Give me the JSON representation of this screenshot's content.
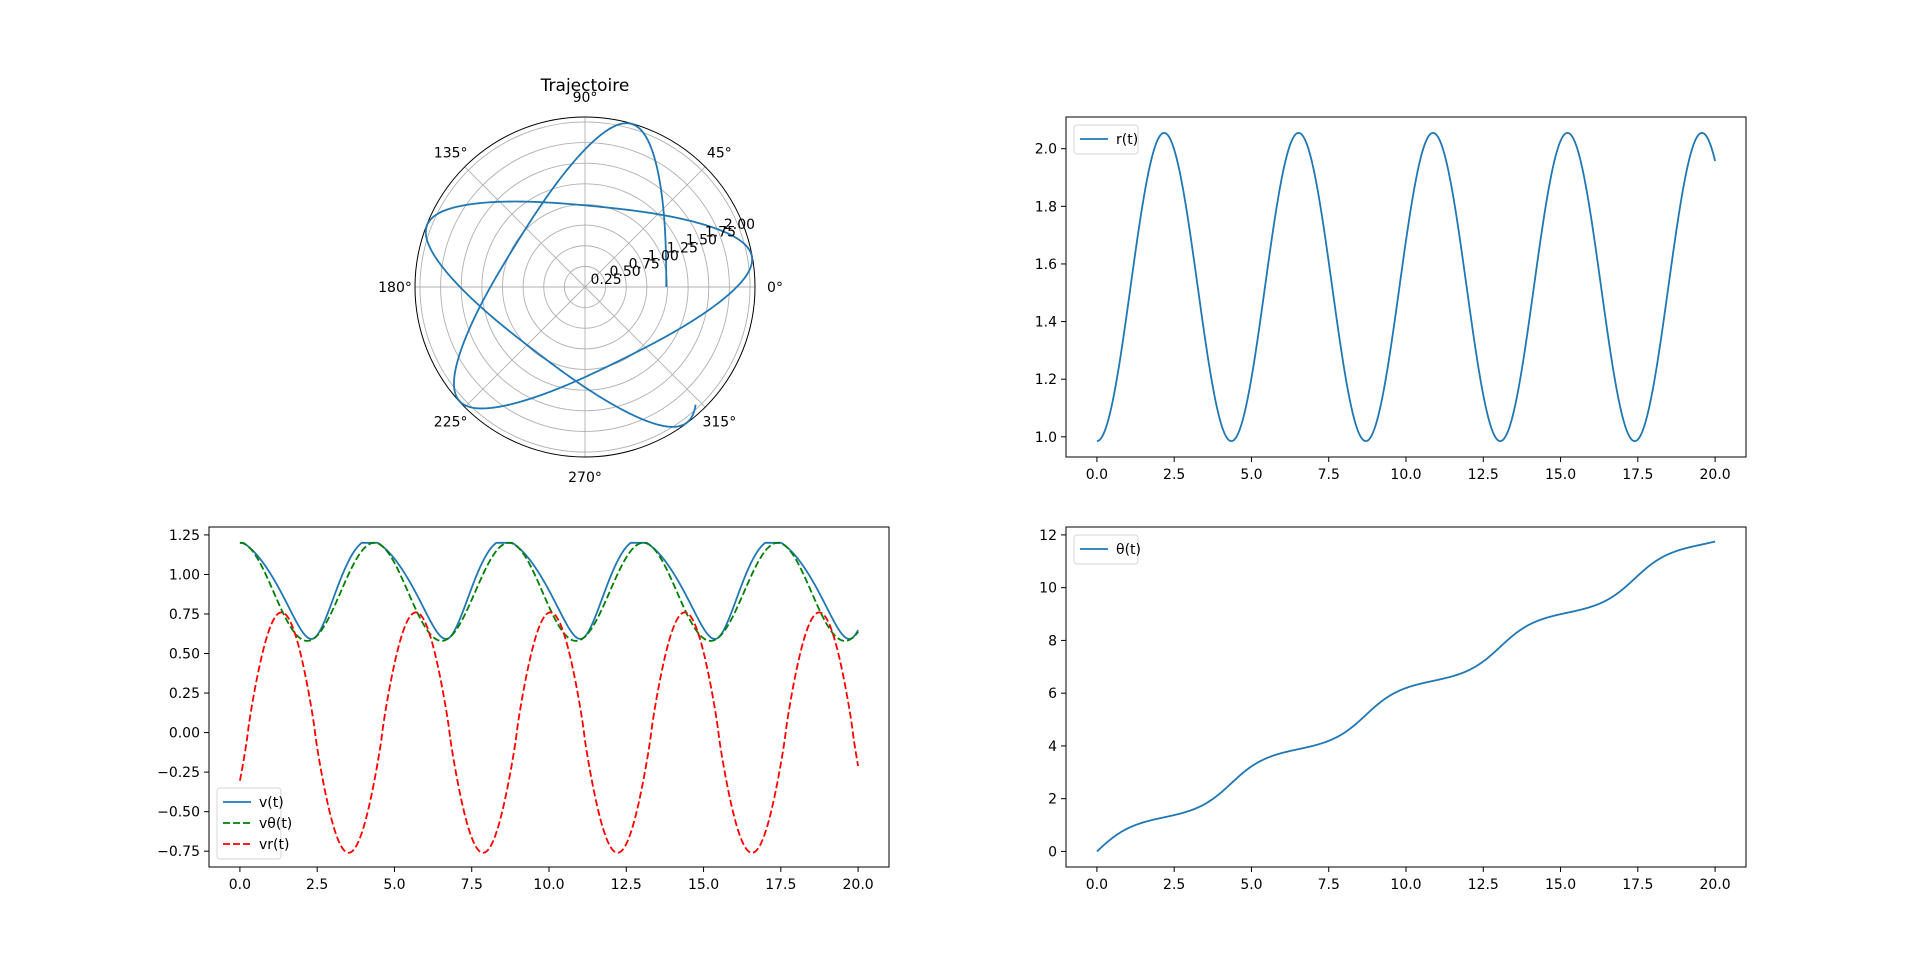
{
  "colors": {
    "blue": "#1f77b4",
    "green": "#008000",
    "red": "#ff0000",
    "grid": "#b0b0b0",
    "axis": "#000000"
  },
  "chart_data": [
    {
      "id": "trajectory",
      "type": "line",
      "projection": "polar",
      "title": "Trajectoire",
      "series_model": {
        "type": "orbit",
        "r_min": 0.98,
        "r_max": 2.05,
        "period": 4.35,
        "t_range": [
          0,
          20
        ],
        "theta_range": [
          0,
          11.75
        ]
      },
      "theta_ticks": [
        "0°",
        "45°",
        "90°",
        "135°",
        "180°",
        "225°",
        "270°",
        "315°"
      ],
      "r_ticks": [
        0.25,
        0.5,
        0.75,
        1.0,
        1.25,
        1.5,
        1.75,
        2.0
      ],
      "r_tick_labels": [
        "0.25",
        "0.50",
        "0.75",
        "1.00",
        "1.25",
        "1.50",
        "1.75",
        "2.00"
      ],
      "rlim": [
        0,
        2.06
      ],
      "grid": true
    },
    {
      "id": "radius",
      "type": "line",
      "title": "",
      "xlabel": "",
      "ylabel": "",
      "xlim": [
        -1.0,
        21.0
      ],
      "ylim": [
        0.93,
        2.11
      ],
      "xticks": [
        0.0,
        2.5,
        5.0,
        7.5,
        10.0,
        12.5,
        15.0,
        17.5,
        20.0
      ],
      "xtick_labels": [
        "0.0",
        "2.5",
        "5.0",
        "7.5",
        "10.0",
        "12.5",
        "15.0",
        "17.5",
        "20.0"
      ],
      "yticks": [
        1.0,
        1.2,
        1.4,
        1.6,
        1.8,
        2.0
      ],
      "ytick_labels": [
        "1.0",
        "1.2",
        "1.4",
        "1.6",
        "1.8",
        "2.0"
      ],
      "legend": "upper left",
      "grid": false,
      "series": [
        {
          "name": "r(t)",
          "style": "solid",
          "color": "#1f77b4",
          "model": {
            "kind": "cosine",
            "min": 0.985,
            "max": 2.055,
            "period": 4.35,
            "phase_min_at": 0
          }
        }
      ]
    },
    {
      "id": "velocity",
      "type": "line",
      "title": "",
      "xlabel": "",
      "ylabel": "",
      "xlim": [
        -1.0,
        21.0
      ],
      "ylim": [
        -0.85,
        1.3
      ],
      "xticks": [
        0.0,
        2.5,
        5.0,
        7.5,
        10.0,
        12.5,
        15.0,
        17.5,
        20.0
      ],
      "xtick_labels": [
        "0.0",
        "2.5",
        "5.0",
        "7.5",
        "10.0",
        "12.5",
        "15.0",
        "17.5",
        "20.0"
      ],
      "yticks": [
        -0.75,
        -0.5,
        -0.25,
        0.0,
        0.25,
        0.5,
        0.75,
        1.0,
        1.25
      ],
      "ytick_labels": [
        "−0.75",
        "−0.50",
        "−0.25",
        "0.00",
        "0.25",
        "0.50",
        "0.75",
        "1.00",
        "1.25"
      ],
      "legend": "lower left",
      "grid": false,
      "series": [
        {
          "name": "v(t)",
          "style": "solid",
          "color": "#1f77b4",
          "model": {
            "kind": "speed",
            "min": 0.58,
            "max": 1.2,
            "period": 4.35
          }
        },
        {
          "name": "vθ(t)",
          "style": "dashed",
          "color": "#008000",
          "model": {
            "kind": "vtheta",
            "min": 0.58,
            "max": 1.2,
            "period": 4.35
          }
        },
        {
          "name": "vr(t)",
          "style": "dashed",
          "color": "#ff0000",
          "model": {
            "kind": "vr",
            "amplitude": 0.76,
            "period": 4.35,
            "start": 0.21
          }
        }
      ]
    },
    {
      "id": "angle",
      "type": "line",
      "title": "",
      "xlabel": "",
      "ylabel": "",
      "xlim": [
        -1.0,
        21.0
      ],
      "ylim": [
        -0.59,
        12.3
      ],
      "xticks": [
        0.0,
        2.5,
        5.0,
        7.5,
        10.0,
        12.5,
        15.0,
        17.5,
        20.0
      ],
      "xtick_labels": [
        "0.0",
        "2.5",
        "5.0",
        "7.5",
        "10.0",
        "12.5",
        "15.0",
        "17.5",
        "20.0"
      ],
      "yticks": [
        0,
        2,
        4,
        6,
        8,
        10,
        12
      ],
      "ytick_labels": [
        "0",
        "2",
        "4",
        "6",
        "8",
        "10",
        "12"
      ],
      "legend": "upper left",
      "grid": false,
      "series": [
        {
          "name": "θ(t)",
          "style": "solid",
          "color": "#1f77b4",
          "model": {
            "kind": "theta",
            "final": 11.75,
            "period": 4.35
          }
        }
      ]
    }
  ]
}
